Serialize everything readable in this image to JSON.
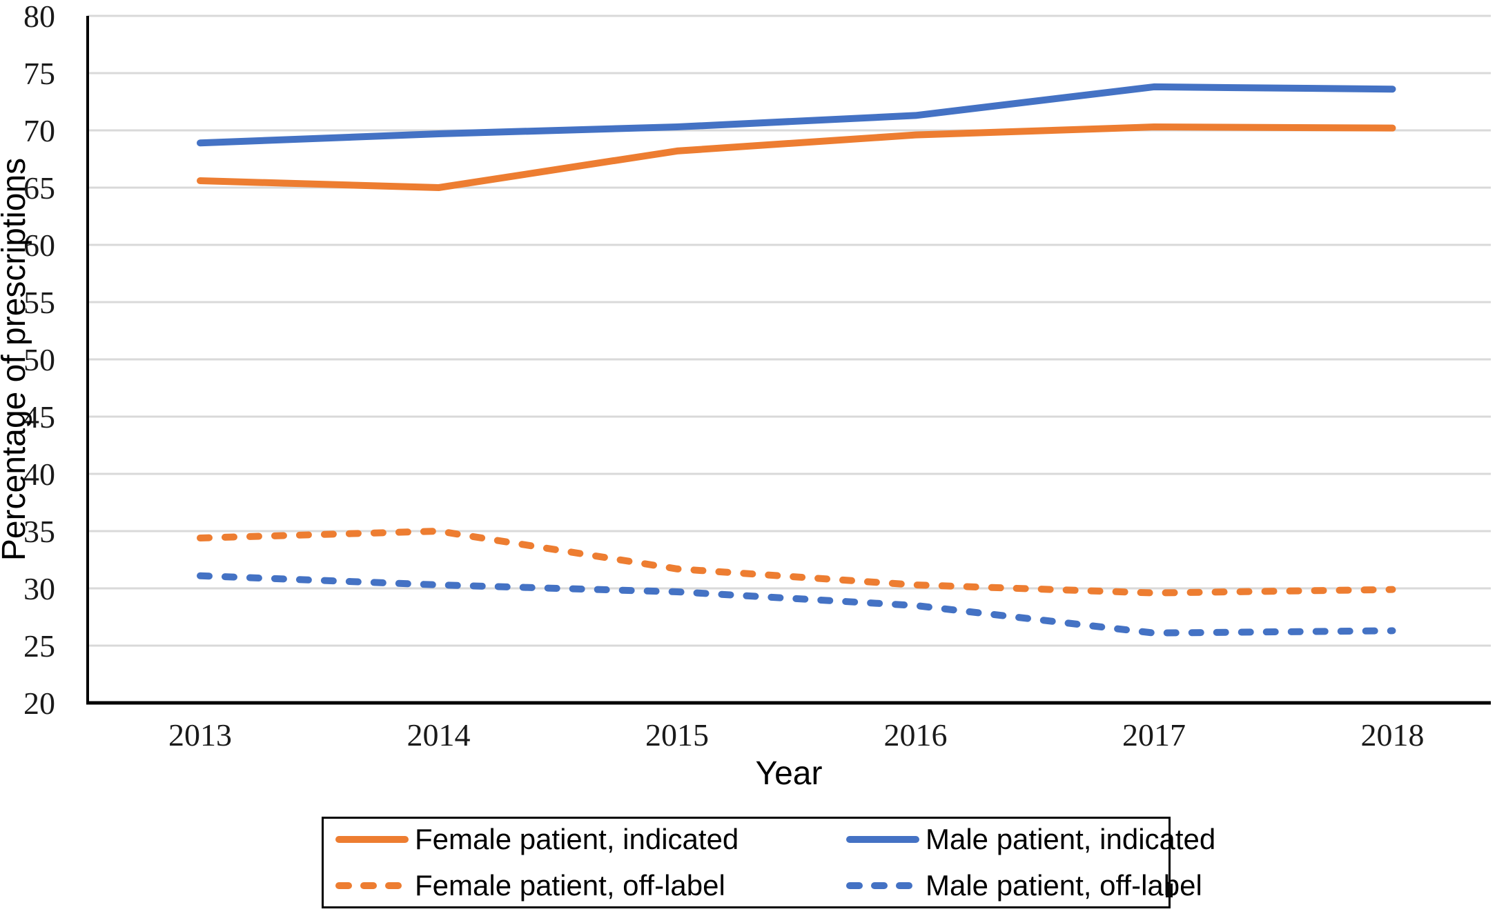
{
  "figure": {
    "xlabel": "Year",
    "ylabel": "Percentage of prescriptions"
  },
  "chart_data": {
    "type": "line",
    "x": [
      2013,
      2014,
      2015,
      2016,
      2017,
      2018
    ],
    "xlabel": "Year",
    "ylabel": "Percentage of prescriptions",
    "ylim": [
      20,
      80
    ],
    "ytick_step": 5,
    "yticks": [
      20,
      25,
      30,
      35,
      40,
      45,
      50,
      55,
      60,
      65,
      70,
      75,
      80
    ],
    "grid": "horizontal",
    "legend_position": "bottom",
    "colors": {
      "orange": "#ED7D31",
      "blue": "#4472C4",
      "gridline": "#D9D9D9",
      "axis": "#000000"
    },
    "series": [
      {
        "name": "Female patient, indicated",
        "color": "#ED7D31",
        "style": "solid",
        "values": [
          65.6,
          65.0,
          68.2,
          69.6,
          70.3,
          70.2
        ]
      },
      {
        "name": "Male patient, indicated",
        "color": "#4472C4",
        "style": "solid",
        "values": [
          68.9,
          69.7,
          70.3,
          71.3,
          73.8,
          73.6
        ]
      },
      {
        "name": "Female patient, off-label",
        "color": "#ED7D31",
        "style": "dashed",
        "values": [
          34.4,
          35.0,
          31.7,
          30.3,
          29.6,
          29.9
        ]
      },
      {
        "name": "Male patient, off-label",
        "color": "#4472C4",
        "style": "dashed",
        "values": [
          31.1,
          30.3,
          29.7,
          28.5,
          26.1,
          26.3
        ]
      }
    ]
  }
}
